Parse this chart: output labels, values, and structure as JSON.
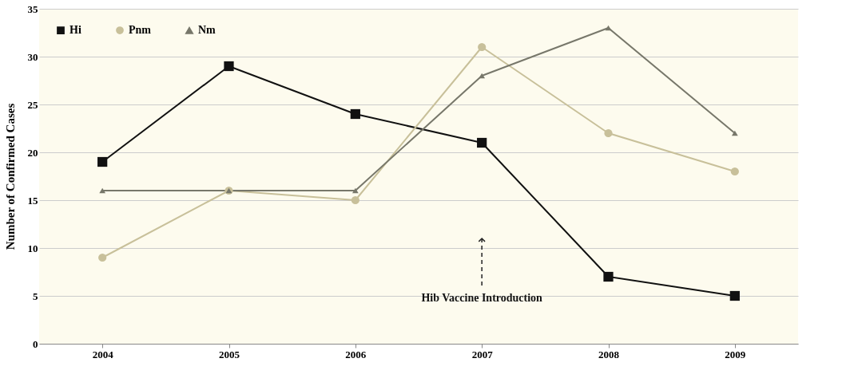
{
  "chart_data": {
    "type": "line",
    "ylabel": "Number of Confirmed Cases",
    "categories": [
      "2004",
      "2005",
      "2006",
      "2007",
      "2008",
      "2009"
    ],
    "series": [
      {
        "name": "Hi",
        "color": "#111111",
        "marker": "square",
        "values": [
          19,
          29,
          24,
          21,
          7,
          5
        ]
      },
      {
        "name": "Pnm",
        "color": "#c8c09a",
        "marker": "circle",
        "values": [
          9,
          16,
          15,
          31,
          22,
          18
        ]
      },
      {
        "name": "Nm",
        "color": "#77776a",
        "marker": "triangle",
        "values": [
          16,
          16,
          16,
          28,
          33,
          22
        ]
      }
    ],
    "ylim": [
      0,
      35
    ],
    "yticks": [
      0,
      5,
      10,
      15,
      20,
      25,
      30,
      35
    ],
    "grid": "y",
    "legend": "top left",
    "line_style": "solid",
    "annotations": [
      {
        "text": "Hib Vaccine Introduction",
        "x": "2007",
        "y": 11
      }
    ]
  }
}
